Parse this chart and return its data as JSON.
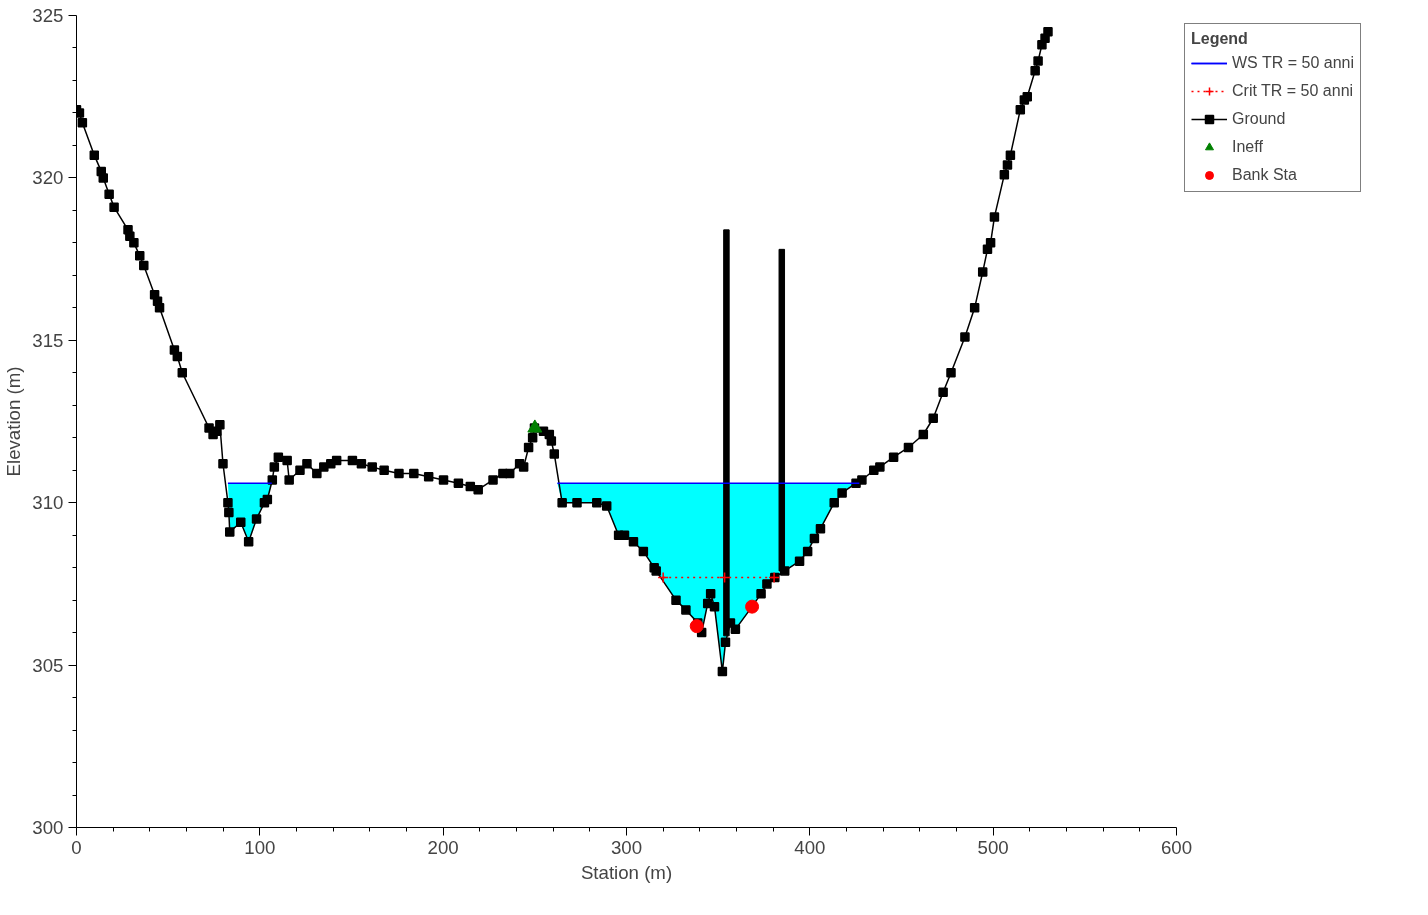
{
  "chart_data": {
    "type": "line",
    "xlabel": "Station (m)",
    "ylabel": "Elevation (m)",
    "legend_title": "Legend",
    "xlim": [
      0,
      600
    ],
    "xticks": [
      0,
      100,
      200,
      300,
      400,
      500,
      600
    ],
    "ylim": [
      300,
      325
    ],
    "yticks": [
      300,
      305,
      310,
      315,
      320,
      325
    ],
    "grid": false,
    "legend": "top right",
    "series": [
      {
        "name": "WS TR = 50 anni",
        "type": "line",
        "color": "#0000ff",
        "x": [
          82.6,
          83.1,
          83.6,
          89.6,
          93.9,
          98.2,
          102.5,
          104.1,
          106.5,
          180,
          262.3,
          264.9,
          273.0,
          283.8,
          289.2,
          295.7,
          298.9,
          303.8,
          309.2,
          315.1,
          316.2,
          327.0,
          332.4,
          338.9,
          341.0,
          344.3,
          345.9,
          348.0,
          352.3,
          354.0,
          356.7,
          359.4,
          368.5,
          373.4,
          376.6,
          380.9,
          386.3,
          394.4,
          398.8,
          402.5,
          405.8,
          413.3,
          417.6,
          425.2,
          427.0
        ],
        "values": [
          310.6,
          310.6,
          310.6,
          310.6,
          310.6,
          310.6,
          310.6,
          310.6,
          310.6,
          null,
          310.6,
          310.6,
          310.6,
          310.6,
          310.6,
          310.6,
          310.6,
          310.6,
          310.6,
          310.6,
          310.6,
          310.6,
          310.6,
          310.6,
          310.6,
          310.6,
          310.6,
          310.6,
          310.6,
          310.6,
          310.6,
          310.6,
          310.6,
          310.6,
          310.6,
          310.6,
          310.6,
          310.6,
          310.6,
          310.6,
          310.6,
          310.6,
          310.6,
          310.6,
          310.6
        ],
        "lower": [
          310.6,
          310.0,
          309.1,
          309.4,
          308.8,
          309.5,
          310.0,
          310.1,
          310.6,
          null,
          310.6,
          310.0,
          310.0,
          310.0,
          309.9,
          309.0,
          309.0,
          308.8,
          308.5,
          308.0,
          307.9,
          307.0,
          306.7,
          306.3,
          306.0,
          306.9,
          307.2,
          306.8,
          304.8,
          305.7,
          306.3,
          306.1,
          306.8,
          307.2,
          307.5,
          307.7,
          307.9,
          308.2,
          308.5,
          308.9,
          309.2,
          310.0,
          310.3,
          310.6,
          310.6
        ],
        "upper": [
          310.6,
          310.6,
          310.6,
          310.6,
          310.6,
          310.6,
          310.6,
          310.6,
          310.6,
          null,
          310.6,
          310.6,
          310.6,
          310.6,
          310.6,
          310.6,
          310.6,
          310.6,
          310.6,
          310.6,
          310.6,
          310.6,
          310.6,
          310.6,
          310.6,
          310.6,
          310.6,
          310.6,
          310.6,
          310.6,
          310.6,
          310.6,
          310.6,
          310.6,
          310.6,
          310.6,
          310.6,
          310.6,
          310.6,
          310.6,
          310.6,
          310.6,
          310.6,
          310.6,
          310.6
        ]
      },
      {
        "name": "Crit TR = 50 anni",
        "type": "line",
        "color": "#ff0000",
        "line_style": "dotted",
        "marker": "cross",
        "x": [
          320.0,
          353.5,
          380.5
        ],
        "values": [
          307.7,
          307.7,
          307.7
        ]
      },
      {
        "name": "Ground",
        "color": "#000000",
        "marker": "square",
        "x": [
          0,
          1.6,
          3.2,
          9.7,
          13.5,
          14.6,
          17.8,
          20.5,
          28.1,
          29.1,
          31.3,
          34.5,
          36.7,
          42.6,
          44.2,
          45.3,
          53.4,
          55.0,
          57.7,
          72.3,
          74.5,
          76.6,
          78.2,
          79.9,
          82.6,
          83.1,
          83.6,
          89.6,
          93.9,
          98.2,
          102.5,
          104.1,
          106.8,
          107.9,
          110.1,
          114.9,
          116.0,
          121.9,
          125.7,
          131.1,
          134.9,
          138.7,
          141.9,
          150.5,
          155.4,
          161.3,
          167.8,
          175.9,
          184.0,
          192.1,
          200.2,
          208.3,
          214.8,
          219.1,
          227.2,
          232.6,
          236.3,
          241.7,
          243.9,
          246.6,
          248.8,
          249.8,
          254.7,
          257.9,
          259.0,
          260.6,
          264.9,
          273.0,
          283.8,
          289.2,
          295.7,
          298.9,
          303.8,
          309.2,
          315.1,
          316.2,
          327.0,
          332.4,
          338.9,
          341.0,
          344.3,
          345.9,
          348.0,
          352.3,
          354.0,
          356.7,
          359.4,
          368.5,
          373.4,
          376.6,
          380.9,
          386.3,
          394.4,
          398.8,
          402.5,
          405.8,
          413.3,
          417.6,
          425.2,
          428.4,
          434.9,
          438.2,
          445.7,
          453.8,
          461.9,
          467.3,
          472.7,
          477.0,
          484.6,
          489.9,
          494.3,
          496.9,
          498.6,
          500.7,
          506.1,
          507.8,
          509.4,
          514.8,
          517.0,
          518.6,
          522.9,
          524.5,
          526.6,
          528.3,
          529.9
        ],
        "values": [
          322.1,
          322.0,
          321.7,
          320.7,
          320.2,
          320.0,
          319.5,
          319.1,
          318.4,
          318.2,
          318.0,
          317.6,
          317.3,
          316.4,
          316.2,
          316.0,
          314.7,
          314.5,
          314.0,
          312.3,
          312.1,
          312.2,
          312.4,
          311.2,
          310.0,
          309.7,
          309.1,
          309.4,
          308.8,
          309.5,
          310.0,
          310.1,
          310.7,
          311.1,
          311.4,
          311.3,
          310.7,
          311.0,
          311.2,
          310.9,
          311.1,
          311.2,
          311.3,
          311.3,
          311.2,
          311.1,
          311.0,
          310.9,
          310.9,
          310.8,
          310.7,
          310.6,
          310.5,
          310.4,
          310.7,
          310.9,
          310.9,
          311.2,
          311.1,
          311.7,
          312.0,
          312.3,
          312.2,
          312.1,
          311.9,
          311.5,
          310.0,
          310.0,
          310.0,
          309.9,
          309.0,
          309.0,
          308.8,
          308.5,
          308.0,
          307.9,
          307.0,
          306.7,
          306.3,
          306.0,
          306.9,
          307.2,
          306.8,
          304.8,
          305.7,
          306.3,
          306.1,
          306.8,
          307.2,
          307.5,
          307.7,
          307.9,
          308.2,
          308.5,
          308.9,
          309.2,
          310.0,
          310.3,
          310.6,
          310.7,
          311.0,
          311.1,
          311.4,
          311.7,
          312.1,
          312.6,
          313.4,
          314.0,
          315.1,
          316.0,
          317.1,
          317.8,
          318.0,
          318.8,
          320.1,
          320.4,
          320.7,
          322.1,
          322.4,
          322.5,
          323.3,
          323.6,
          324.1,
          324.3,
          324.5
        ]
      },
      {
        "name": "Ineff",
        "type": "scatter",
        "color": "#008000",
        "marker": "triangle",
        "x": [
          250.0
        ],
        "values": [
          312.3
        ]
      },
      {
        "name": "Bank Sta",
        "type": "scatter",
        "color": "#ff0000",
        "marker": "circle",
        "x": [
          338.3,
          368.5
        ],
        "values": [
          306.2,
          306.8
        ]
      },
      {
        "type": "bar",
        "color": "#000000",
        "x": [
          354.5,
          384.7
        ],
        "base": [
          305.9,
          307.9
        ],
        "values": [
          12.5,
          9.9
        ]
      }
    ]
  }
}
